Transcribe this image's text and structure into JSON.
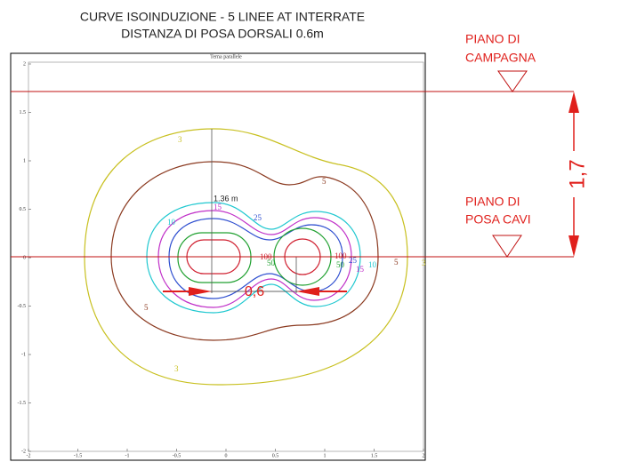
{
  "header": {
    "title_line1": "CURVE ISOINDUZIONE - 5 LINEE AT INTERRATE",
    "title_line2": "DISTANZA DI POSA DORSALI 0.6m"
  },
  "plot": {
    "title": "Terna parallele",
    "x_ticks": [
      "-2",
      "-1.5",
      "-1",
      "-0.5",
      "0",
      "0.5",
      "1",
      "1.5",
      "2"
    ],
    "y_ticks": [
      "2",
      "1.5",
      "1",
      "0.5",
      "0",
      "-0.5",
      "-1",
      "-1.5",
      "-2"
    ]
  },
  "contour_labels": {
    "l3a": "3",
    "l3b": "3",
    "l3c": "3",
    "l5a": "5",
    "l5b": "5",
    "l5c": "5",
    "l10a": "10",
    "l10b": "10",
    "l15a": "15",
    "l15b": "15",
    "l25a": "25",
    "l25b": "25",
    "l50a": "50",
    "l50b": "50",
    "l100a": "100",
    "l100b": "100"
  },
  "annotations": {
    "depth_label": "1.36 m",
    "spacing": "0,6",
    "depth": "1,7",
    "ground_line1": "PIANO DI",
    "ground_line2": "CAMPAGNA",
    "cable_line1": "PIANO DI",
    "cable_line2": "POSA CAVI"
  }
}
